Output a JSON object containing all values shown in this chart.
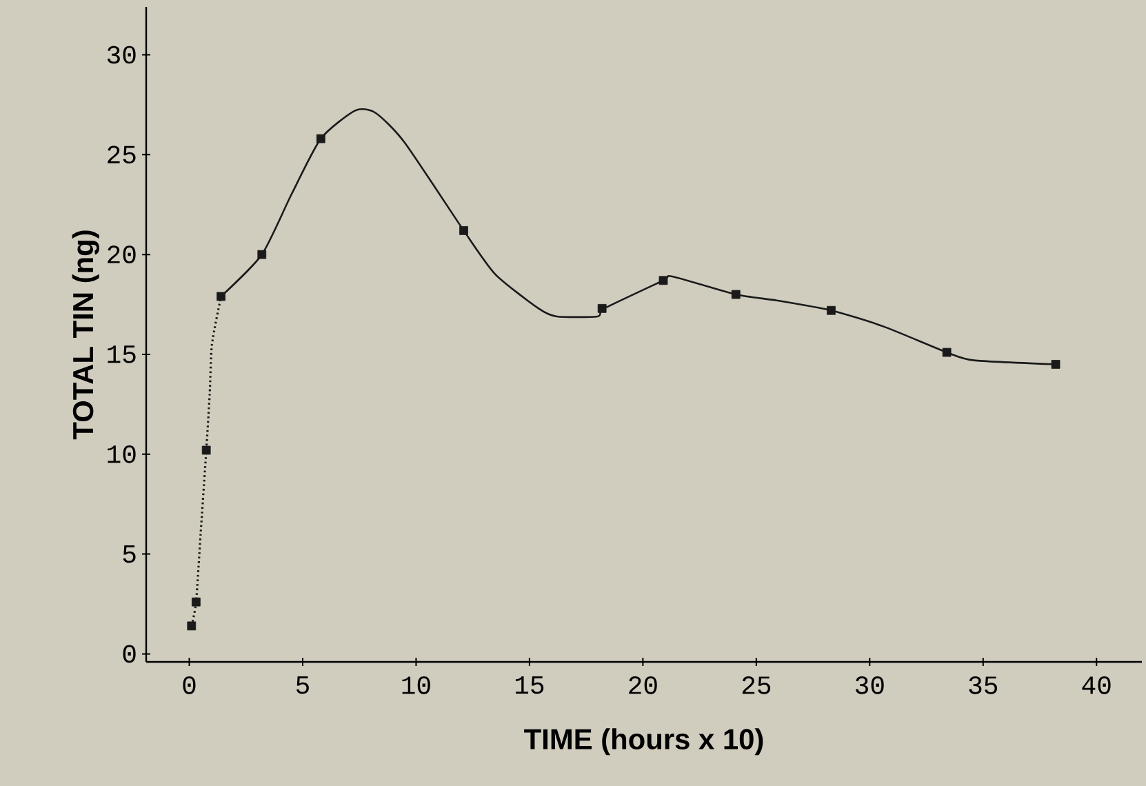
{
  "chart_data": {
    "type": "line",
    "xlabel": "TIME (hours x 10)",
    "ylabel": "TOTAL TIN (ng)",
    "xlim": [
      -1.9,
      42
    ],
    "ylim": [
      -0.4,
      32.4
    ],
    "xticks": [
      0,
      5,
      10,
      15,
      20,
      25,
      30,
      35,
      40
    ],
    "yticks": [
      0,
      5,
      10,
      15,
      20,
      25,
      30
    ],
    "grid": false,
    "series": [
      {
        "color": "#1a1a1a",
        "line_style": "dotted",
        "marker": "none",
        "x": [
          0.1,
          0.3,
          0.5,
          0.75,
          0.9,
          1.0,
          1.4
        ],
        "values": [
          1.4,
          2.6,
          6,
          10.2,
          13,
          15.5,
          17.9
        ]
      },
      {
        "color": "#1a1a1a",
        "line_style": "solid",
        "marker": "none",
        "x": [
          1.4,
          3.2,
          4.5,
          5.8,
          7.3,
          8.2,
          9.5,
          12.1,
          13.5,
          15.4,
          16.2,
          18.0,
          18.3,
          20.9,
          21.3,
          24.1,
          25.9,
          28.3,
          30.6,
          33.4,
          34.6,
          38.2
        ],
        "values": [
          17.9,
          20,
          23,
          25.8,
          27.2,
          27.1,
          25.6,
          21.2,
          19,
          17.3,
          16.9,
          16.9,
          17.3,
          18.7,
          18.9,
          18.0,
          17.7,
          17.2,
          16.4,
          15.1,
          14.7,
          14.5
        ]
      },
      {
        "type": "scatter",
        "color": "#1a1a1a",
        "marker": "square",
        "x": [
          0.1,
          0.3,
          0.75,
          1.4,
          3.2,
          5.8,
          12.1,
          18.2,
          20.9,
          24.1,
          28.3,
          33.4,
          38.2
        ],
        "values": [
          1.4,
          2.6,
          10.2,
          17.9,
          20,
          25.8,
          21.2,
          17.3,
          18.7,
          18,
          17.2,
          15.1,
          14.5
        ]
      }
    ]
  }
}
